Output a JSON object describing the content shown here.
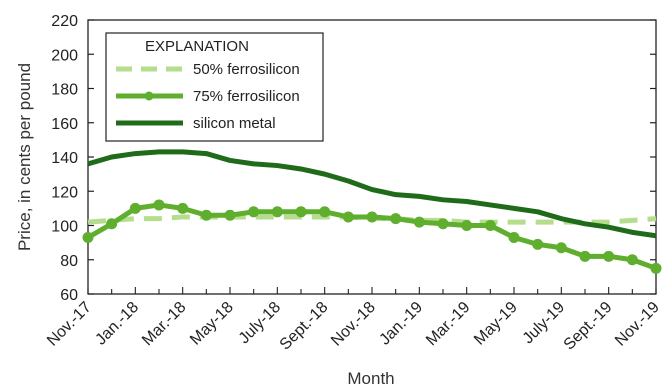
{
  "chart_data": {
    "type": "line",
    "xlabel": "Month",
    "ylabel": "Price, in cents per pound",
    "ylim": [
      60,
      220
    ],
    "y_ticks": [
      60,
      80,
      100,
      120,
      140,
      160,
      180,
      200,
      220
    ],
    "x_tick_labels": [
      "Nov.-17",
      "Jan.-18",
      "Mar.-18",
      "May-18",
      "July-18",
      "Sept.-18",
      "Nov.-18",
      "Jan.-19",
      "Mar.-19",
      "May-19",
      "July-19",
      "Sept.-19",
      "Nov.-19"
    ],
    "x_months": [
      "Nov.-17",
      "Dec.-17",
      "Jan.-18",
      "Feb.-18",
      "Mar.-18",
      "Apr.-18",
      "May-18",
      "June-18",
      "July-18",
      "Aug.-18",
      "Sept.-18",
      "Oct.-18",
      "Nov.-18",
      "Dec.-18",
      "Jan.-19",
      "Feb.-19",
      "Mar.-19",
      "Apr.-19",
      "May-19",
      "June-19",
      "July-19",
      "Aug.-19",
      "Sept.-19",
      "Oct.-19",
      "Nov.-19"
    ],
    "grid": false,
    "legend": {
      "title": "EXPLANATION",
      "placement": "top-left"
    },
    "series": [
      {
        "name": "50% ferrosilicon",
        "style": "dashed",
        "color": "#b5dd8e",
        "values": [
          102,
          103,
          104,
          104,
          105,
          105,
          105,
          105,
          105,
          105,
          105,
          105,
          104,
          104,
          103,
          103,
          102,
          102,
          102,
          102,
          102,
          102,
          102,
          103,
          104
        ]
      },
      {
        "name": "75% ferrosilicon",
        "style": "solid-markers",
        "color": "#5fae2e",
        "values": [
          93,
          101,
          110,
          112,
          110,
          106,
          106,
          108,
          108,
          108,
          108,
          105,
          105,
          104,
          102,
          101,
          100,
          100,
          93,
          89,
          87,
          82,
          82,
          80,
          75
        ]
      },
      {
        "name": "silicon metal",
        "style": "solid",
        "color": "#1f6b1a",
        "values": [
          136,
          140,
          142,
          143,
          143,
          142,
          138,
          136,
          135,
          133,
          130,
          126,
          121,
          118,
          117,
          115,
          114,
          112,
          110,
          108,
          104,
          101,
          99,
          96,
          94
        ]
      }
    ]
  }
}
